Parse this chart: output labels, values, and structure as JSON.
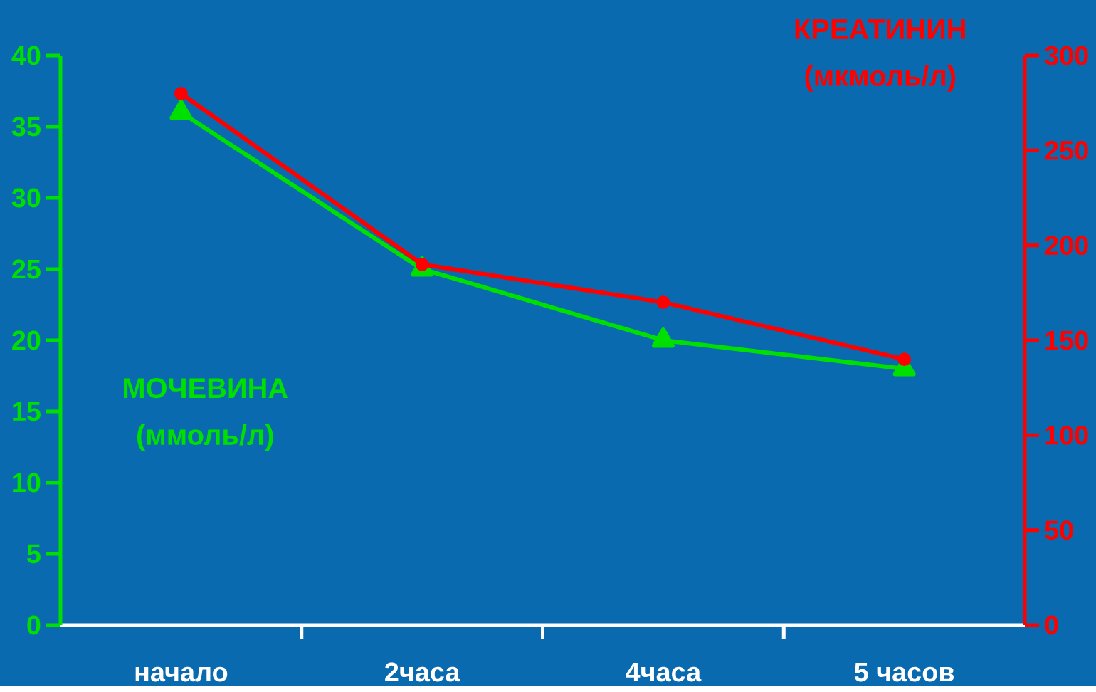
{
  "chart_data": {
    "type": "line",
    "categories": [
      "начало",
      "2часа",
      "4часа",
      "5 часов"
    ],
    "ylabel": "МОЧЕВИНА (ммоль/л)",
    "y2label": "КРЕАТИНИН (мкмоль/л)",
    "ylim": [
      0,
      40
    ],
    "yticks": [
      0,
      5,
      10,
      15,
      20,
      25,
      30,
      35,
      40
    ],
    "y2lim": [
      0,
      300
    ],
    "y2ticks": [
      0,
      50,
      100,
      150,
      200,
      250,
      300
    ],
    "series": [
      {
        "color": "#00e000",
        "values": [
          36,
          25,
          20,
          18
        ],
        "marker": "triangle"
      },
      {
        "color": "#ff0000",
        "values": [
          280,
          190,
          170,
          140
        ],
        "marker": "circle",
        "axis": "y2"
      }
    ]
  }
}
